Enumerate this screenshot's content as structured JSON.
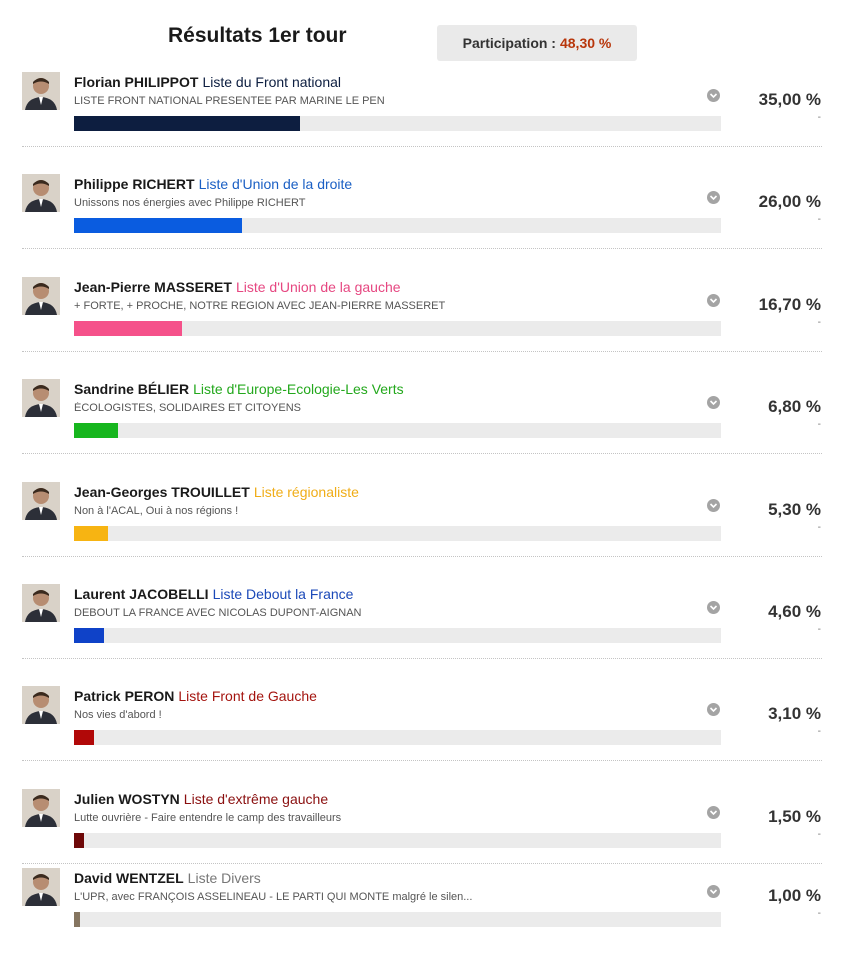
{
  "header": {
    "title": "Résultats 1er tour",
    "participation_label": "Participation :",
    "participation_value": "48,30 %"
  },
  "chart_data": {
    "type": "bar",
    "orientation": "horizontal",
    "xlim": [
      0,
      100
    ],
    "categories": [
      "Florian PHILIPPOT",
      "Philippe RICHERT",
      "Jean-Pierre MASSERET",
      "Sandrine BÉLIER",
      "Jean-Georges TROUILLET",
      "Laurent JACOBELLI",
      "Patrick PERON",
      "Julien WOSTYN",
      "David WENTZEL"
    ],
    "values": [
      35.0,
      26.0,
      16.7,
      6.8,
      5.3,
      4.6,
      3.1,
      1.5,
      1.0
    ]
  },
  "candidates": [
    {
      "name": "Florian PHILIPPOT",
      "list": "Liste du Front national",
      "slogan": "LISTE FRONT NATIONAL PRESENTEE PAR MARINE LE PEN",
      "percent_label": "35,00 %",
      "change": "-",
      "value": 35.0,
      "color": "#0d1e40",
      "list_color": "#0d1e40"
    },
    {
      "name": "Philippe RICHERT",
      "list": "Liste d'Union de la droite",
      "slogan": "Unissons nos énergies avec Philippe RICHERT",
      "percent_label": "26,00 %",
      "change": "-",
      "value": 26.0,
      "color": "#0a5ce0",
      "list_color": "#1a5fc4"
    },
    {
      "name": "Jean-Pierre MASSERET",
      "list": "Liste d'Union de la gauche",
      "slogan": "+ FORTE, + PROCHE, NOTRE REGION AVEC JEAN-PIERRE MASSERET",
      "percent_label": "16,70 %",
      "change": "-",
      "value": 16.7,
      "color": "#f5518a",
      "list_color": "#e64781"
    },
    {
      "name": "Sandrine BÉLIER",
      "list": "Liste d'Europe-Ecologie-Les Verts",
      "slogan": "ÉCOLOGISTES, SOLIDAIRES ET CITOYENS",
      "percent_label": "6,80 %",
      "change": "-",
      "value": 6.8,
      "color": "#17b61e",
      "list_color": "#23a81c"
    },
    {
      "name": "Jean-Georges TROUILLET",
      "list": "Liste régionaliste",
      "slogan": "Non à l'ACAL, Oui à nos régions !",
      "percent_label": "5,30 %",
      "change": "-",
      "value": 5.3,
      "color": "#f7b412",
      "list_color": "#f0ad17"
    },
    {
      "name": "Laurent JACOBELLI",
      "list": "Liste Debout la France",
      "slogan": "DEBOUT LA FRANCE AVEC NICOLAS DUPONT-AIGNAN",
      "percent_label": "4,60 %",
      "change": "-",
      "value": 4.6,
      "color": "#0f42c8",
      "list_color": "#1b49b8"
    },
    {
      "name": "Patrick PERON",
      "list": "Liste Front de Gauche",
      "slogan": "Nos vies d'abord !",
      "percent_label": "3,10 %",
      "change": "-",
      "value": 3.1,
      "color": "#b10808",
      "list_color": "#a4140f"
    },
    {
      "name": "Julien WOSTYN",
      "list": "Liste d'extrême gauche",
      "slogan": "Lutte ouvrière - Faire entendre le camp des travailleurs",
      "percent_label": "1,50 %",
      "change": "-",
      "value": 1.5,
      "color": "#6e0808",
      "list_color": "#8a0f0f"
    },
    {
      "name": "David WENTZEL",
      "list": "Liste Divers",
      "slogan": "L'UPR, avec FRANÇOIS ASSELINEAU - LE PARTI QUI MONTE malgré le silen...",
      "percent_label": "1,00 %",
      "change": "-",
      "value": 1.0,
      "color": "#857560",
      "list_color": "#777777"
    }
  ]
}
